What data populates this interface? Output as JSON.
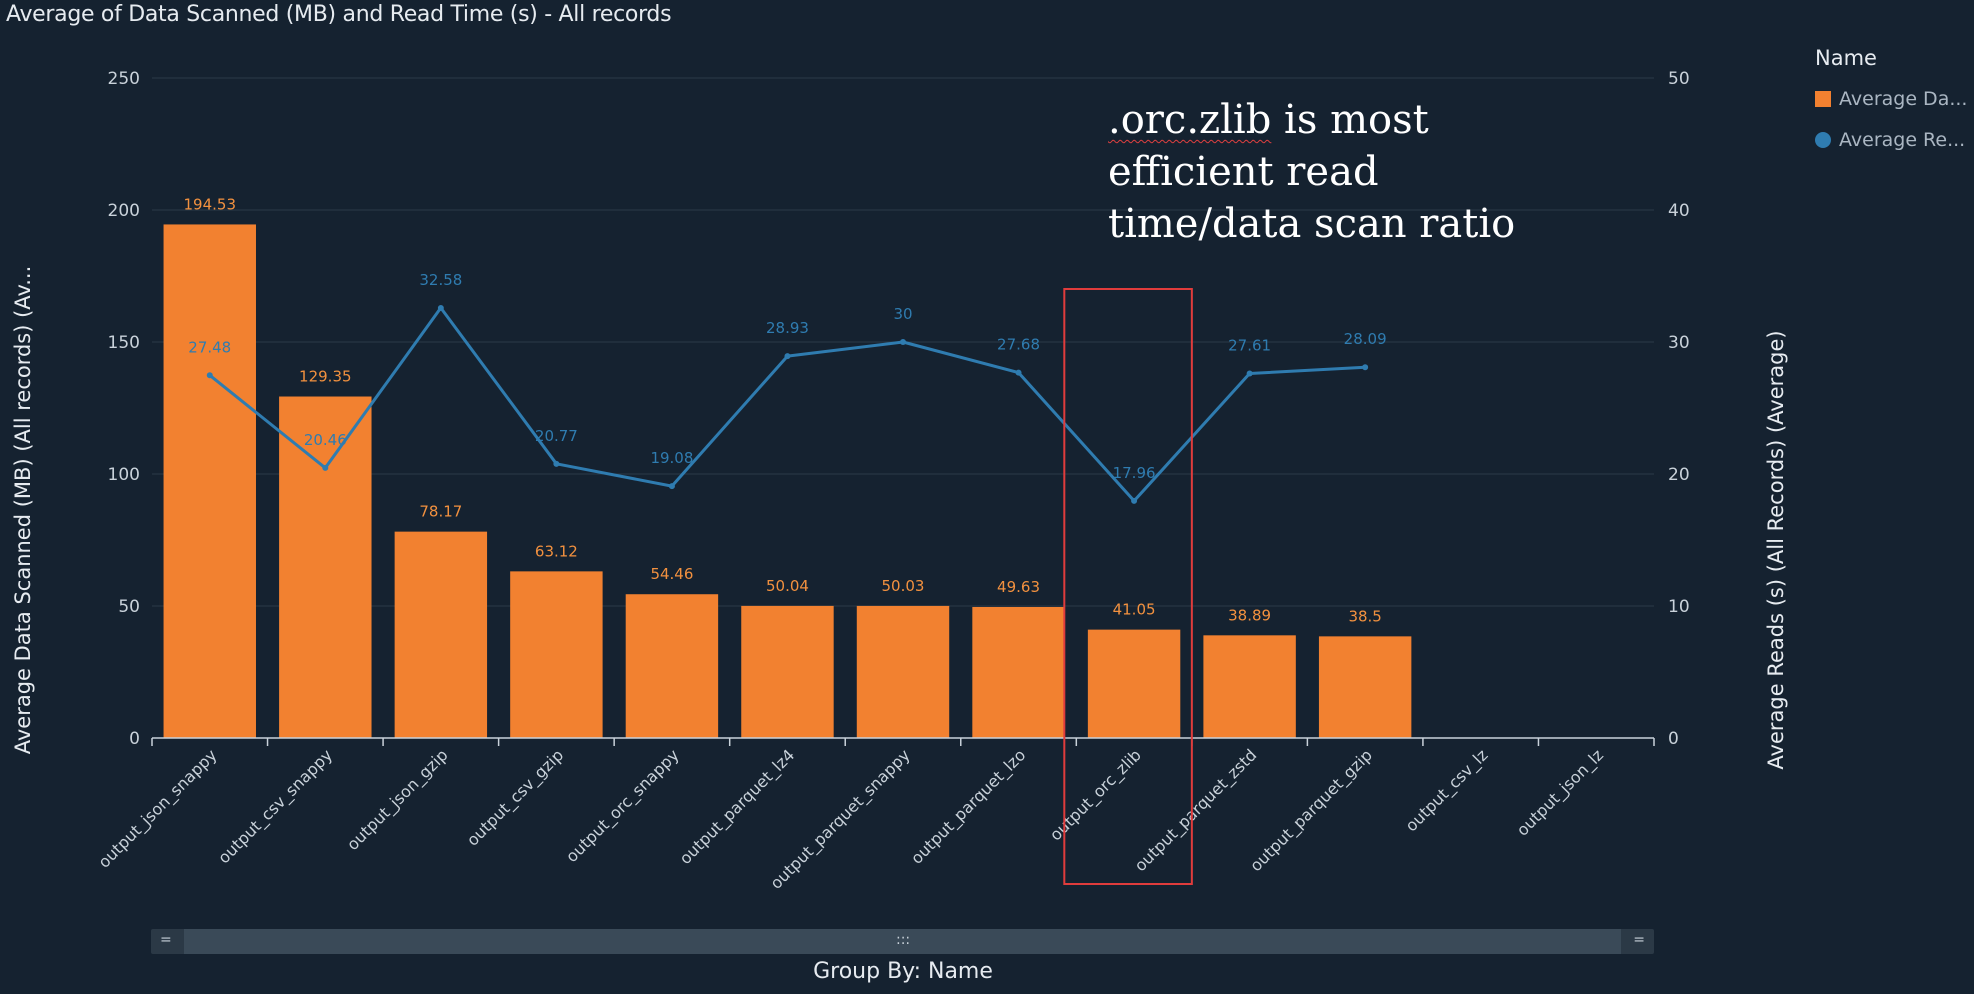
{
  "title": "Average of Data Scanned (MB) and Read Time (s) - All records",
  "legend": {
    "title": "Name",
    "items": [
      {
        "label": "Average Da...",
        "color": "#f28130",
        "shape": "square"
      },
      {
        "label": "Average Re...",
        "color": "#2f7cb0",
        "shape": "circle"
      }
    ]
  },
  "group_by_label": "Group By: Name",
  "annotation": {
    "prefix": ".orc.zlib",
    "rest": " is most efficient read time/data scan ratio",
    "highlight_category": "output_orc_zlib",
    "highlight_color": "#e03c3c"
  },
  "scroll": {
    "left_grip": "=",
    "center_grip": ":::",
    "right_grip": "="
  },
  "chart_data": {
    "type": "bar",
    "categories": [
      "output_json_snappy",
      "output_csv_snappy",
      "output_json_gzip",
      "output_csv_gzip",
      "output_orc_snappy",
      "output_parquet_lz4",
      "output_parquet_snappy",
      "output_parquet_lzo",
      "output_orc_zlib",
      "output_parquet_zstd",
      "output_parquet_gzip",
      "output_csv_lz",
      "output_json_lz"
    ],
    "series": [
      {
        "name": "Average Data Scanned (MB) (All records) (Average)",
        "type": "bar",
        "axis": "left",
        "color": "#f28130",
        "values": [
          194.53,
          129.35,
          78.17,
          63.12,
          54.46,
          50.04,
          50.03,
          49.63,
          41.05,
          38.89,
          38.5,
          null,
          null
        ]
      },
      {
        "name": "Average Reads (s) (All Records) (Average)",
        "type": "line",
        "axis": "right",
        "color": "#2f7cb0",
        "values": [
          27.48,
          20.46,
          32.58,
          20.77,
          19.08,
          28.93,
          30,
          27.68,
          17.96,
          27.61,
          28.09,
          null,
          null
        ]
      }
    ],
    "ylabel": "Average Data Scanned (MB) (All records) (Av...",
    "y2label": "Average Reads (s) (All Records) (Average)",
    "ylim": [
      0,
      250
    ],
    "y2lim": [
      0,
      50
    ],
    "yticks": [
      "0",
      "50",
      "100",
      "150",
      "200",
      "250"
    ],
    "y2ticks": [
      "0",
      "10",
      "20",
      "30",
      "40",
      "50"
    ],
    "bar_labels": [
      "194.53",
      "129.35",
      "78.17",
      "63.12",
      "54.46",
      "50.04",
      "50.03",
      "49.63",
      "41.05",
      "38.89",
      "38.5"
    ],
    "line_labels": [
      "27.48",
      "20.46",
      "32.58",
      "20.77",
      "19.08",
      "28.93",
      "30",
      "27.68",
      "17.96",
      "27.61",
      "28.09"
    ],
    "grid": true
  }
}
